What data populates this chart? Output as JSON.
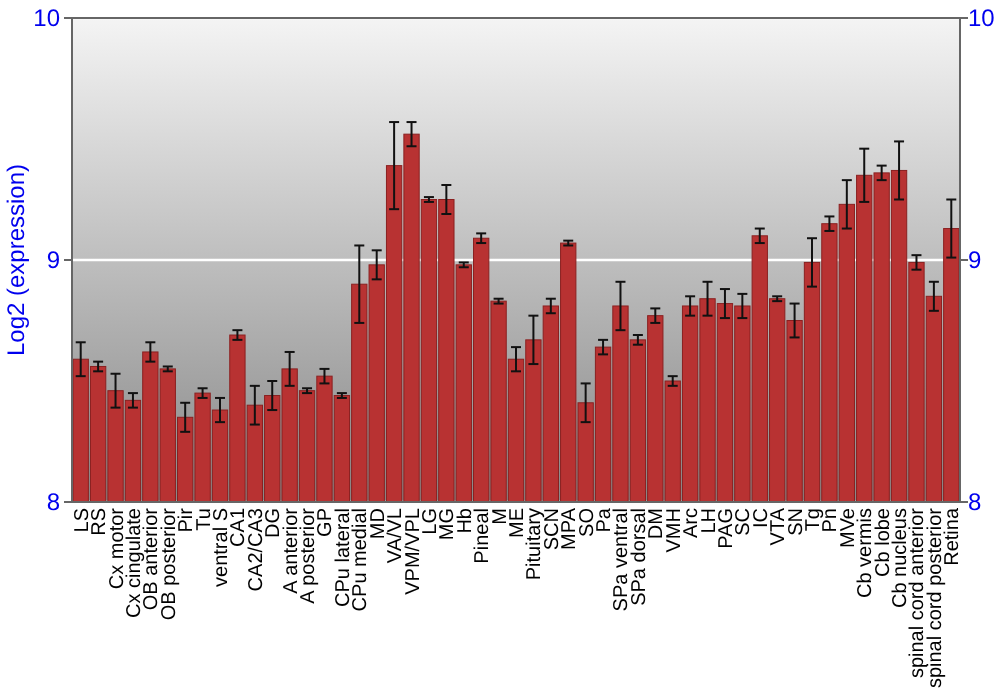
{
  "chart_data": {
    "type": "bar",
    "ylabel": "Log2 (expression)",
    "categories": [
      "LS",
      "RS",
      "Cx motor",
      "Cx cingulate",
      "OB anterior",
      "OB posterior",
      "Pir",
      "Tu",
      "ventral S",
      "CA1",
      "CA2/CA3",
      "DG",
      "A anterior",
      "A posterior",
      "GP",
      "CPu lateral",
      "CPu medial",
      "MD",
      "VA/VL",
      "VPM/VPL",
      "LG",
      "MG",
      "Hb",
      "Pineal",
      "M",
      "ME",
      "Pituitary",
      "SCN",
      "MPA",
      "SO",
      "Pa",
      "SPa ventral",
      "SPa dorsal",
      "DM",
      "VMH",
      "Arc",
      "LH",
      "PAG",
      "SC",
      "IC",
      "VTA",
      "SN",
      "Tg",
      "Pn",
      "MVe",
      "Cb vermis",
      "Cb lobe",
      "Cb nucleus",
      "spinal cord anterior",
      "spinal cord posterior",
      "Retina"
    ],
    "values": [
      8.59,
      8.56,
      8.46,
      8.42,
      8.62,
      8.55,
      8.35,
      8.45,
      8.38,
      8.69,
      8.4,
      8.44,
      8.55,
      8.46,
      8.52,
      8.44,
      8.9,
      8.98,
      9.39,
      9.52,
      9.25,
      9.25,
      8.98,
      9.09,
      8.83,
      8.59,
      8.67,
      8.81,
      9.07,
      8.41,
      8.64,
      8.81,
      8.67,
      8.77,
      8.5,
      8.81,
      8.84,
      8.82,
      8.81,
      9.1,
      8.84,
      8.75,
      8.99,
      9.15,
      9.23,
      9.35,
      9.36,
      9.37,
      8.99,
      8.85,
      9.13
    ],
    "errors": [
      0.07,
      0.02,
      0.07,
      0.03,
      0.04,
      0.01,
      0.06,
      0.02,
      0.05,
      0.02,
      0.08,
      0.06,
      0.07,
      0.01,
      0.03,
      0.01,
      0.16,
      0.06,
      0.18,
      0.05,
      0.01,
      0.06,
      0.01,
      0.02,
      0.01,
      0.05,
      0.1,
      0.03,
      0.01,
      0.08,
      0.03,
      0.1,
      0.02,
      0.03,
      0.02,
      0.04,
      0.07,
      0.06,
      0.05,
      0.03,
      0.01,
      0.07,
      0.1,
      0.03,
      0.1,
      0.11,
      0.03,
      0.12,
      0.03,
      0.06,
      0.12
    ],
    "color": "#b83232",
    "ylim": [
      8,
      10
    ],
    "yticks": [
      8,
      9,
      10
    ],
    "y2lim": [
      8,
      10
    ],
    "y2ticks": [
      8,
      9,
      10
    ],
    "grid": "y"
  }
}
